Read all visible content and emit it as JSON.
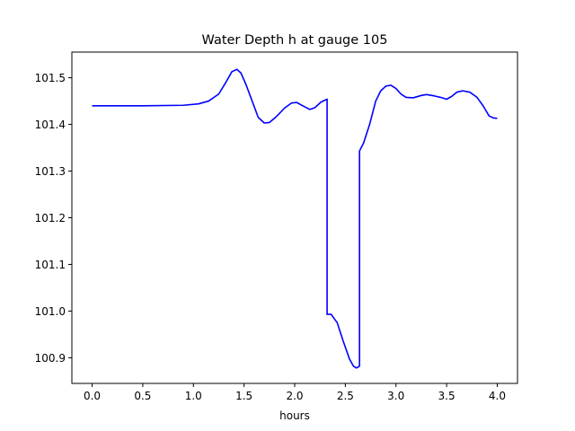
{
  "chart_data": {
    "type": "line",
    "title": "Water Depth h at gauge 105",
    "xlabel": "hours",
    "ylabel": "",
    "xlim": [
      -0.2,
      4.2
    ],
    "ylim": [
      100.845,
      101.555
    ],
    "xticks": [
      0.0,
      0.5,
      1.0,
      1.5,
      2.0,
      2.5,
      3.0,
      3.5,
      4.0
    ],
    "xtick_labels": [
      "0.0",
      "0.5",
      "1.0",
      "1.5",
      "2.0",
      "2.5",
      "3.0",
      "3.5",
      "4.0"
    ],
    "yticks": [
      100.9,
      101.0,
      101.1,
      101.2,
      101.3,
      101.4,
      101.5
    ],
    "ytick_labels": [
      "100.9",
      "101.0",
      "101.1",
      "101.2",
      "101.3",
      "101.4",
      "101.5"
    ],
    "grid": false,
    "legend": false,
    "series": [
      {
        "color": "#0000ff",
        "points": [
          [
            0.0,
            101.44
          ],
          [
            0.5,
            101.44
          ],
          [
            0.9,
            101.441
          ],
          [
            1.05,
            101.444
          ],
          [
            1.15,
            101.45
          ],
          [
            1.25,
            101.465
          ],
          [
            1.32,
            101.49
          ],
          [
            1.38,
            101.513
          ],
          [
            1.43,
            101.518
          ],
          [
            1.47,
            101.51
          ],
          [
            1.52,
            101.485
          ],
          [
            1.58,
            101.45
          ],
          [
            1.64,
            101.415
          ],
          [
            1.7,
            101.403
          ],
          [
            1.75,
            101.404
          ],
          [
            1.82,
            101.417
          ],
          [
            1.9,
            101.435
          ],
          [
            1.97,
            101.446
          ],
          [
            2.02,
            101.447
          ],
          [
            2.08,
            101.44
          ],
          [
            2.15,
            101.432
          ],
          [
            2.2,
            101.436
          ],
          [
            2.26,
            101.448
          ],
          [
            2.32,
            101.454
          ],
          [
            2.32,
            100.993
          ],
          [
            2.36,
            100.993
          ],
          [
            2.42,
            100.975
          ],
          [
            2.48,
            100.935
          ],
          [
            2.54,
            100.898
          ],
          [
            2.58,
            100.882
          ],
          [
            2.61,
            100.878
          ],
          [
            2.64,
            100.882
          ],
          [
            2.64,
            101.343
          ],
          [
            2.68,
            101.36
          ],
          [
            2.74,
            101.4
          ],
          [
            2.8,
            101.45
          ],
          [
            2.85,
            101.472
          ],
          [
            2.9,
            101.482
          ],
          [
            2.95,
            101.484
          ],
          [
            3.0,
            101.477
          ],
          [
            3.05,
            101.465
          ],
          [
            3.1,
            101.458
          ],
          [
            3.17,
            101.457
          ],
          [
            3.25,
            101.462
          ],
          [
            3.3,
            101.464
          ],
          [
            3.38,
            101.461
          ],
          [
            3.44,
            101.458
          ],
          [
            3.5,
            101.454
          ],
          [
            3.55,
            101.46
          ],
          [
            3.6,
            101.469
          ],
          [
            3.66,
            101.472
          ],
          [
            3.73,
            101.469
          ],
          [
            3.8,
            101.458
          ],
          [
            3.86,
            101.44
          ],
          [
            3.92,
            101.418
          ],
          [
            3.96,
            101.414
          ],
          [
            4.0,
            101.413
          ]
        ]
      }
    ]
  }
}
